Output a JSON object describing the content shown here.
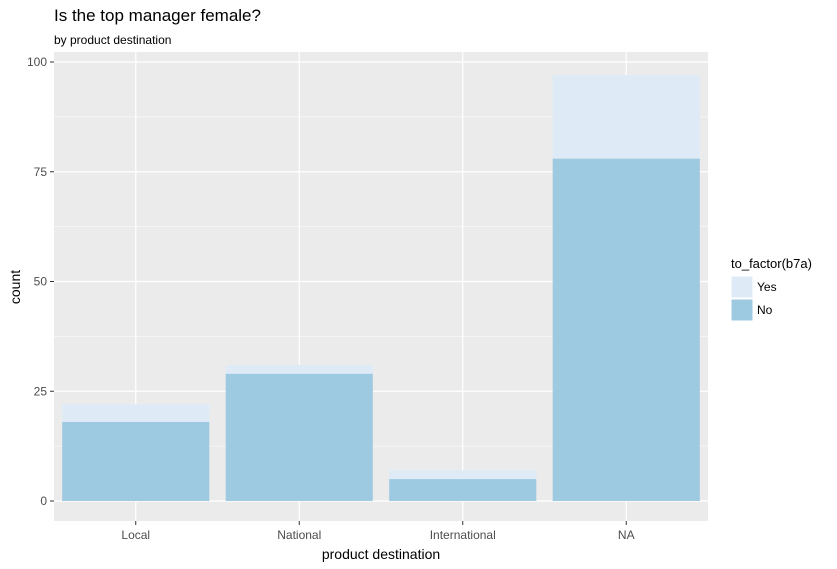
{
  "chart_data": {
    "type": "bar",
    "title": "Is the top manager female?",
    "subtitle": "by product destination",
    "xlabel": "product destination",
    "ylabel": "count",
    "categories": [
      "Local",
      "National",
      "International",
      "NA"
    ],
    "series": [
      {
        "name": "No",
        "values": [
          18,
          29,
          5,
          78
        ],
        "color": "#9ecae1"
      },
      {
        "name": "Yes",
        "values": [
          4,
          2,
          2,
          19
        ],
        "color": "#deebf7"
      }
    ],
    "stacked": true,
    "ylim": [
      0,
      100
    ],
    "yticks": [
      0,
      25,
      50,
      75,
      100
    ],
    "grid": true,
    "legend": {
      "title": "to_factor(b7a)",
      "position": "right",
      "order": [
        "Yes",
        "No"
      ]
    },
    "panel_background": "#ebebeb"
  }
}
